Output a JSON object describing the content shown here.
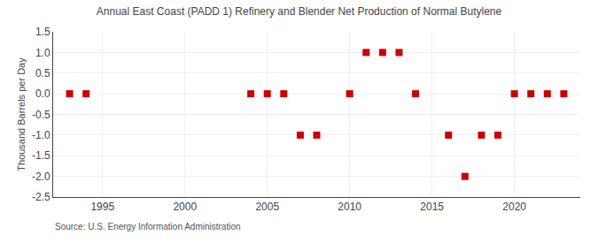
{
  "chart_data": {
    "type": "scatter",
    "title": "Annual East Coast (PADD 1) Refinery and Blender Net Production of Normal Butylene",
    "ylabel": "Thousand Barrels per Day",
    "annotations": [
      "Source: U.S. Energy Information Administration"
    ],
    "x": [
      1993,
      1994,
      2004,
      2005,
      2006,
      2007,
      2008,
      2010,
      2011,
      2012,
      2013,
      2014,
      2016,
      2017,
      2018,
      2019,
      2020,
      2021,
      2022,
      2023
    ],
    "values": [
      0,
      0,
      0,
      0,
      0,
      -1,
      -1,
      0,
      1,
      1,
      1,
      0,
      -1,
      -2,
      -1,
      -1,
      0,
      0,
      0,
      0
    ],
    "color": "#cc0000",
    "marker": "square",
    "xlim": [
      1992,
      2024
    ],
    "xticks": [
      1995,
      2000,
      2005,
      2010,
      2015,
      2020
    ],
    "ylim": [
      -2.5,
      1.5
    ],
    "yticks": [
      -2.5,
      {
        "value": -2.0,
        "label": "-2.0"
      },
      -1.5,
      {
        "value": -1.0,
        "label": "-1.0"
      },
      -0.5,
      {
        "value": 0.0,
        "label": "0.0"
      },
      0.5,
      {
        "value": 1.0,
        "label": "1.0"
      },
      1.5
    ],
    "grid": true
  }
}
